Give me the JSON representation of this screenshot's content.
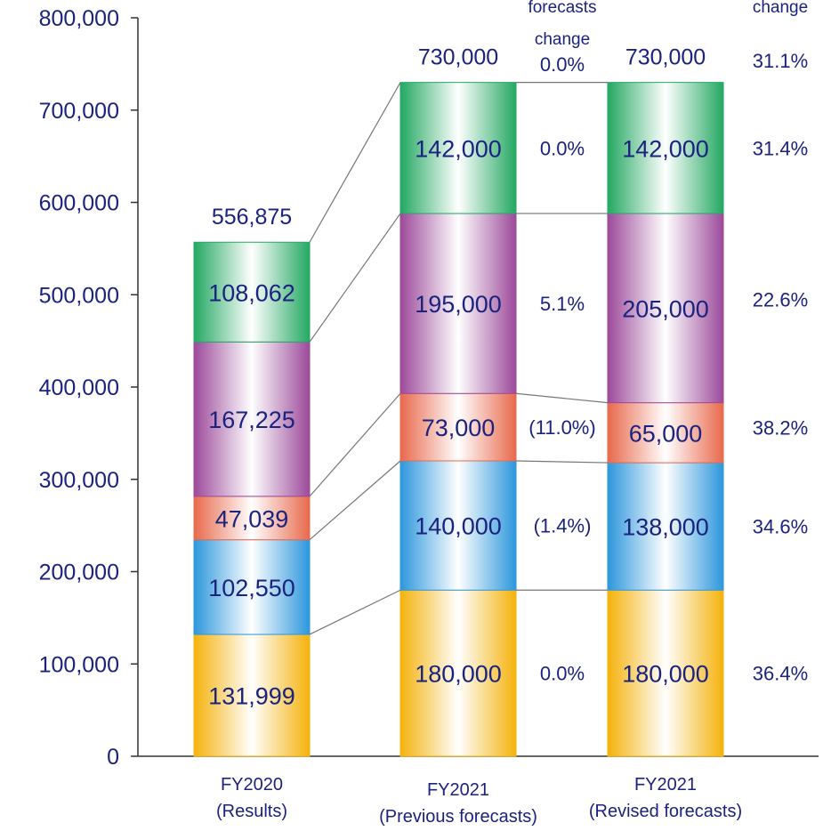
{
  "chart_data": {
    "type": "bar",
    "stacked": true,
    "categories": [
      [
        "FY2020",
        "(Results)"
      ],
      [
        "FY2021",
        "(Previous forecasts)"
      ],
      [
        "FY2021",
        "(Revised forecasts)"
      ]
    ],
    "series": [
      {
        "values": [
          131999,
          180000,
          180000
        ],
        "labels": [
          "131,999",
          "180,000",
          "180,000"
        ],
        "color": "#f4b20c"
      },
      {
        "values": [
          102550,
          140000,
          138000
        ],
        "labels": [
          "102,550",
          "140,000",
          "138,000"
        ],
        "color": "#2d97dc"
      },
      {
        "values": [
          47039,
          73000,
          65000
        ],
        "labels": [
          "47,039",
          "73,000",
          "65,000"
        ],
        "color": "#e8694c"
      },
      {
        "values": [
          167225,
          195000,
          205000
        ],
        "labels": [
          "167,225",
          "195,000",
          "205,000"
        ],
        "color": "#9c4a9a"
      },
      {
        "values": [
          108062,
          142000,
          142000
        ],
        "labels": [
          "108,062",
          "142,000",
          "142,000"
        ],
        "color": "#24a862"
      }
    ],
    "totals": [
      "556,875",
      "730,000",
      "730,000"
    ],
    "ylim": [
      0,
      800000
    ],
    "yticks": [
      "0",
      "100,000",
      "200,000",
      "300,000",
      "400,000",
      "500,000",
      "600,000",
      "700,000",
      "800,000"
    ],
    "forecast_change": {
      "header": [
        "forecasts",
        "change"
      ],
      "total": "0.0%",
      "segments": [
        "0.0%",
        "(1.4%)",
        "(11.0%)",
        "5.1%",
        "0.0%"
      ]
    },
    "yoy_change": {
      "header": [
        "change"
      ],
      "total": "31.1%",
      "segments": [
        "36.4%",
        "34.6%",
        "38.2%",
        "22.6%",
        "31.4%"
      ]
    }
  }
}
